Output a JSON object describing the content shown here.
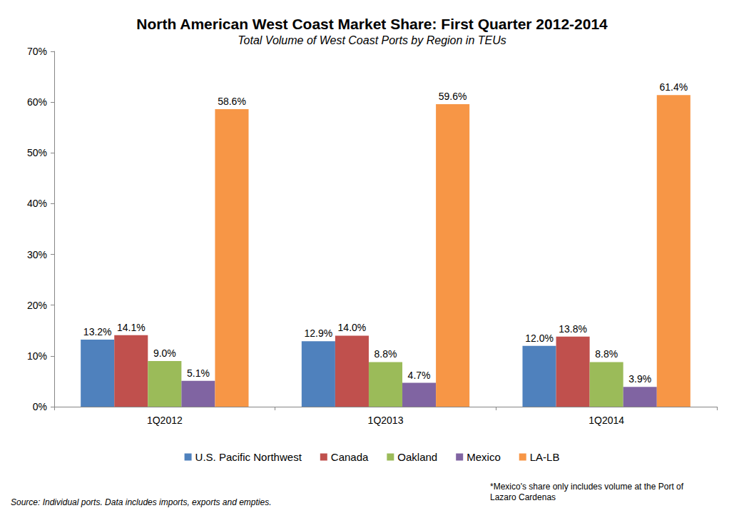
{
  "chart_data": {
    "type": "bar",
    "title": "North American West Coast Market Share: First Quarter 2012-2014",
    "subtitle": "Total Volume of West Coast Ports by Region in TEUs",
    "annotations": [
      "*Mexico's share only includes volume at the Port of\nLazaro Cardenas",
      "Source: Individual ports. Data includes imports, exports and empties."
    ],
    "categories": [
      "1Q2012",
      "1Q2013",
      "1Q2014"
    ],
    "series": [
      {
        "name": "U.S. Pacific Northwest",
        "color": "#4F81BD",
        "values": [
          13.2,
          12.9,
          12.0
        ],
        "value_labels": [
          "13.2%",
          "12.9%",
          "12.0%"
        ]
      },
      {
        "name": "Canada",
        "color": "#C0504D",
        "values": [
          14.1,
          14.0,
          13.8
        ],
        "value_labels": [
          "14.1%",
          "14.0%",
          "13.8%"
        ]
      },
      {
        "name": "Oakland",
        "color": "#9BBB59",
        "values": [
          9.0,
          8.8,
          8.8
        ],
        "value_labels": [
          "9.0%",
          "8.8%",
          "8.8%"
        ]
      },
      {
        "name": "Mexico",
        "color": "#8064A2",
        "values": [
          5.1,
          4.7,
          3.9
        ],
        "value_labels": [
          "5.1%",
          "4.7%",
          "3.9%"
        ]
      },
      {
        "name": "LA-LB",
        "color": "#F79646",
        "values": [
          58.6,
          59.6,
          61.4
        ],
        "value_labels": [
          "58.6%",
          "59.6%",
          "61.4%"
        ]
      }
    ],
    "ylim": [
      0,
      70
    ],
    "yticks": [
      {
        "value": 0,
        "label": "0%"
      },
      {
        "value": 10,
        "label": "10%"
      },
      {
        "value": 20,
        "label": "20%"
      },
      {
        "value": 30,
        "label": "30%"
      },
      {
        "value": 40,
        "label": "40%"
      },
      {
        "value": 50,
        "label": "50%"
      },
      {
        "value": 60,
        "label": "60%"
      },
      {
        "value": 70,
        "label": "70%"
      }
    ],
    "grid": false,
    "legend": "bottom",
    "data_labels": true
  }
}
